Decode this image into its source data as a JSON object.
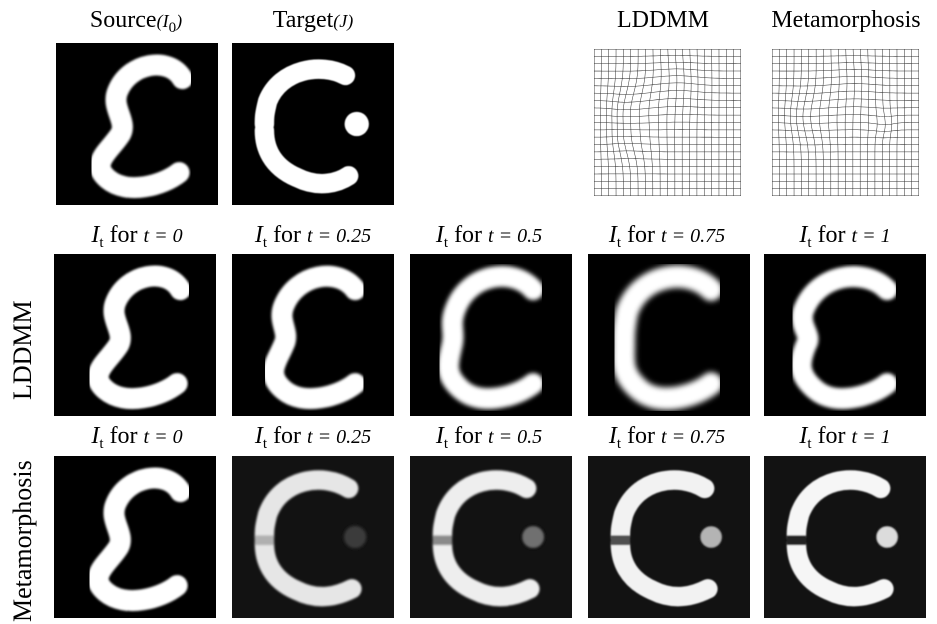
{
  "top": {
    "source_label": "Source",
    "source_sym": "(I",
    "source_sub": "0",
    "source_close": ")",
    "target_label": "Target",
    "target_sym": "(J)",
    "lddmm_title": "LDDMM",
    "meta_title": "Metamorphosis"
  },
  "rows": {
    "lddmm_label": "LDDMM",
    "meta_label": "Metamorphosis"
  },
  "time_labels": [
    {
      "I": "I",
      "sub": "t",
      "for": " for ",
      "eq": "t = 0"
    },
    {
      "I": "I",
      "sub": "t",
      "for": " for ",
      "eq": "t = 0.25"
    },
    {
      "I": "I",
      "sub": "t",
      "for": " for ",
      "eq": "t = 0.5"
    },
    {
      "I": "I",
      "sub": "t",
      "for": " for ",
      "eq": "t = 0.75"
    },
    {
      "I": "I",
      "sub": "t",
      "for": " for ",
      "eq": "t = 1"
    }
  ]
}
